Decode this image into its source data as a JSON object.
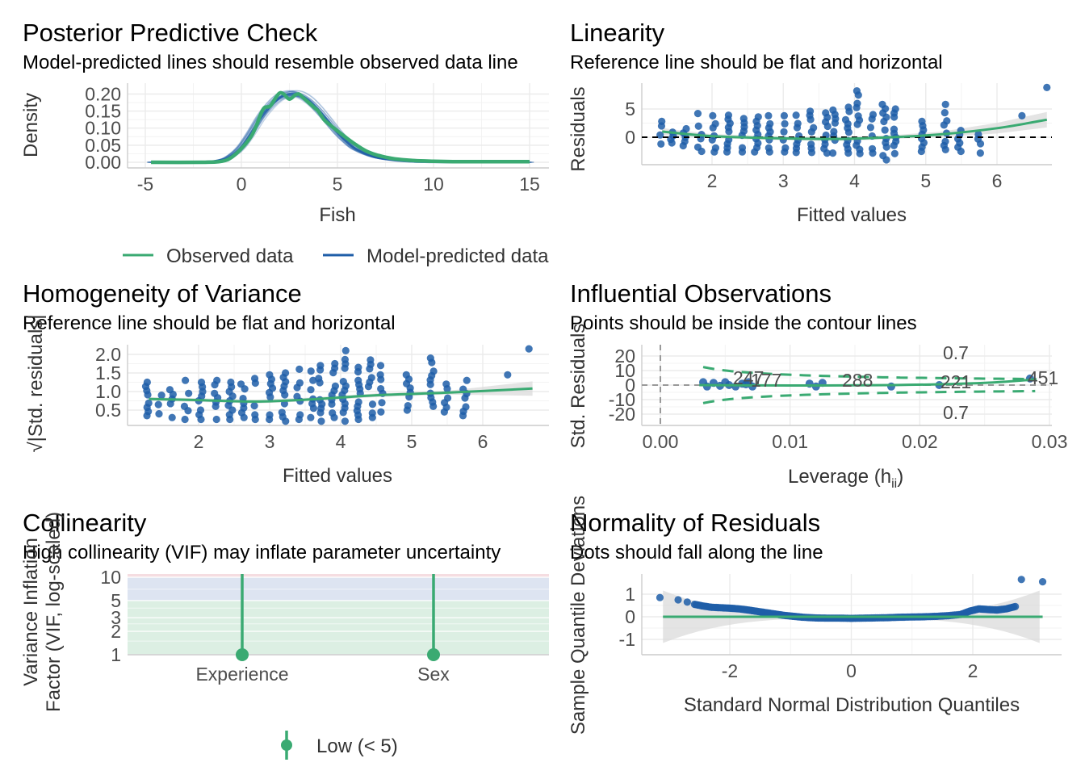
{
  "colors": {
    "observed": "#3aaa72",
    "predicted": "#1f5ea8",
    "points": "#1f5ea8",
    "reference": "#3aaa72",
    "ci_band": "#d9d9d9",
    "zone_low": "#dcefe3",
    "zone_moderate": "#dde4f1",
    "zone_high": "#f5dde1"
  },
  "panels": {
    "ppc": {
      "title": "Posterior Predictive Check",
      "subtitle": "Model-predicted lines should resemble observed data line",
      "xlabel": "Fish",
      "ylabel": "Density",
      "legend_observed": "Observed data",
      "legend_predicted": "Model-predicted data"
    },
    "linearity": {
      "title": "Linearity",
      "subtitle": "Reference line should be flat and horizontal",
      "xlabel": "Fitted values",
      "ylabel": "Residuals"
    },
    "homogeneity": {
      "title": "Homogeneity of Variance",
      "subtitle": "Reference line should be flat and horizontal",
      "xlabel": "Fitted values",
      "ylabel": "√|Std. residuals|"
    },
    "influential": {
      "title": "Influential Observations",
      "subtitle": "Points should be inside the contour lines",
      "xlabel": "Leverage (h",
      "xlabel_sub": "ii",
      "xlabel_end": ")",
      "ylabel": "Std. Residuals",
      "contour_label_top": "0.7",
      "contour_label_bottom": "0.7",
      "point_labels": [
        "247",
        "177",
        "288",
        "221",
        "451"
      ]
    },
    "collinearity": {
      "title": "Collinearity",
      "subtitle": "High collinearity (VIF) may inflate parameter uncertainty",
      "ylabel_line1": "Variance Inflation",
      "ylabel_line2": "Factor (VIF, log-scaled)",
      "legend_low": "Low (< 5)"
    },
    "normality": {
      "title": "Normality of Residuals",
      "subtitle": "Dots should fall along the line",
      "xlabel": "Standard Normal Distribution Quantiles",
      "ylabel": "Sample Quantile Deviations"
    }
  },
  "chart_data": [
    {
      "id": "ppc",
      "type": "line",
      "title": "Posterior Predictive Check",
      "xlabel": "Fish",
      "ylabel": "Density",
      "xlim": [
        -5,
        15
      ],
      "ylim": [
        0,
        0.22
      ],
      "xticks": [
        -5,
        0,
        5,
        10,
        15
      ],
      "yticks": [
        0,
        0.05,
        0.1,
        0.15,
        0.2
      ],
      "series": [
        {
          "name": "Observed data",
          "x": [
            -4.7,
            -2,
            -1,
            -0.5,
            0,
            0.5,
            0.8,
            1,
            1.2,
            1.5,
            1.8,
            2,
            2.2,
            2.5,
            2.8,
            3,
            3.2,
            3.5,
            3.8,
            4,
            4.3,
            4.6,
            5,
            5.5,
            6,
            6.5,
            7,
            7.5,
            8,
            9,
            10,
            11,
            12,
            13,
            15
          ],
          "y": [
            0,
            0,
            0.003,
            0.015,
            0.04,
            0.075,
            0.11,
            0.14,
            0.16,
            0.165,
            0.19,
            0.203,
            0.2,
            0.185,
            0.197,
            0.2,
            0.19,
            0.175,
            0.16,
            0.15,
            0.125,
            0.11,
            0.092,
            0.07,
            0.05,
            0.033,
            0.022,
            0.015,
            0.01,
            0.005,
            0.003,
            0.002,
            0.002,
            0.002,
            0.002
          ]
        },
        {
          "name": "Model-predicted data",
          "x": [
            -4.7,
            -2,
            -1,
            -0.5,
            0,
            0.5,
            1,
            1.5,
            2,
            2.5,
            3,
            3.5,
            4,
            4.5,
            5,
            5.5,
            6,
            7,
            8,
            9,
            10,
            12,
            15
          ],
          "y": [
            0,
            0.001,
            0.007,
            0.02,
            0.045,
            0.085,
            0.13,
            0.165,
            0.19,
            0.2,
            0.198,
            0.182,
            0.155,
            0.122,
            0.088,
            0.06,
            0.038,
            0.015,
            0.006,
            0.002,
            0.001,
            0,
            0
          ]
        }
      ],
      "legend": "bottom"
    },
    {
      "id": "linearity",
      "type": "scatter",
      "title": "Linearity",
      "xlabel": "Fitted values",
      "ylabel": "Residuals",
      "xlim": [
        1.1,
        6.8
      ],
      "ylim": [
        -4.5,
        9
      ],
      "xticks": [
        2,
        3,
        4,
        5,
        6
      ],
      "yticks": [
        0,
        5
      ],
      "reference_line": 0,
      "fitted_values": [
        1.28,
        1.45,
        1.62,
        1.83,
        2.03,
        2.24,
        2.45,
        2.62,
        2.8,
        3.02,
        3.2,
        3.4,
        3.6,
        3.72,
        3.9,
        4.05,
        4.25,
        4.42,
        4.58,
        4.95,
        5.28,
        5.48,
        5.75
      ],
      "residual_max": [
        2.8,
        0.9,
        1.5,
        4.2,
        3.8,
        3.9,
        3.3,
        3.6,
        3.8,
        3.8,
        3.9,
        4.6,
        4.3,
        4.8,
        5.3,
        8.2,
        4,
        5.8,
        5,
        2.8,
        5.8,
        1.2,
        0.5
      ],
      "residual_min": [
        -1.2,
        -1,
        -1.5,
        -2.5,
        -2.6,
        -2.6,
        -2.6,
        -2.6,
        -2.6,
        -2.6,
        -2.7,
        -2.7,
        -2.8,
        -2.8,
        -2.8,
        -2.9,
        -2.8,
        -4,
        -2.9,
        -2.5,
        -2.2,
        -2.5,
        -2.8
      ],
      "outliers": [
        [
          6.35,
          3.8
        ],
        [
          6.7,
          8.8
        ]
      ],
      "smooth": {
        "x": [
          1.3,
          2,
          3,
          3.8,
          4.5,
          5.2,
          6,
          6.7
        ],
        "y": [
          1,
          0.2,
          -0.2,
          -0.3,
          0,
          0.5,
          1.6,
          3.1
        ]
      }
    },
    {
      "id": "homogeneity",
      "type": "scatter",
      "title": "Homogeneity of Variance",
      "xlabel": "Fitted values",
      "ylabel": "√|Std. residuals|",
      "xlim": [
        1.1,
        6.8
      ],
      "ylim": [
        0.1,
        2.3
      ],
      "xticks": [
        2,
        3,
        4,
        5,
        6
      ],
      "yticks": [
        0.5,
        1,
        1.5,
        2
      ],
      "fitted_values": [
        1.28,
        1.45,
        1.62,
        1.83,
        2.03,
        2.24,
        2.45,
        2.62,
        2.8,
        3.02,
        3.2,
        3.4,
        3.6,
        3.72,
        3.9,
        4.05,
        4.25,
        4.42,
        4.58,
        4.95,
        5.28,
        5.48,
        5.75
      ],
      "value_max": [
        1.25,
        0.9,
        1.05,
        1.3,
        1.25,
        1.3,
        1.25,
        1.2,
        1.35,
        1.45,
        1.5,
        1.6,
        1.55,
        1.7,
        1.75,
        2.1,
        1.65,
        1.85,
        1.7,
        1.45,
        1.9,
        1.2,
        1.3
      ],
      "value_min": [
        0.35,
        0.4,
        0.3,
        0.25,
        0.25,
        0.25,
        0.25,
        0.3,
        0.25,
        0.25,
        0.2,
        0.25,
        0.3,
        0.2,
        0.3,
        0.2,
        0.25,
        0.3,
        0.45,
        0.5,
        0.6,
        0.45,
        0.35
      ],
      "outliers": [
        [
          6.35,
          1.45
        ],
        [
          6.65,
          2.15
        ]
      ],
      "smooth": {
        "x": [
          1.3,
          2,
          2.8,
          3.5,
          4.5,
          5.5,
          6.7
        ],
        "y": [
          0.8,
          0.77,
          0.73,
          0.78,
          0.9,
          0.97,
          1.08
        ]
      }
    },
    {
      "id": "influential",
      "type": "scatter",
      "title": "Influential Observations",
      "xlabel": "Leverage (hii)",
      "ylabel": "Std. Residuals",
      "xlim": [
        -0.0015,
        0.0305
      ],
      "ylim": [
        -27,
        27
      ],
      "xticks": [
        0,
        0.01,
        0.02,
        0.03
      ],
      "yticks": [
        -20,
        -10,
        0,
        10,
        20
      ],
      "points": [
        [
          0.0033,
          2
        ],
        [
          0.0036,
          -1
        ],
        [
          0.0041,
          1.5
        ],
        [
          0.0046,
          -0.5
        ],
        [
          0.005,
          2
        ],
        [
          0.0053,
          0
        ],
        [
          0.0058,
          -1
        ],
        [
          0.0063,
          1
        ],
        [
          0.0066,
          0.5
        ],
        [
          0.0068,
          2
        ],
        [
          0.0071,
          -1
        ],
        [
          0.0115,
          1
        ],
        [
          0.012,
          -1
        ],
        [
          0.0125,
          1.5
        ],
        [
          0.0178,
          -1
        ],
        [
          0.0215,
          0
        ],
        [
          0.0285,
          4.5
        ]
      ],
      "labeled_points": [
        [
          0.0045,
          3.5,
          "247"
        ],
        [
          0.0072,
          2.5,
          "177"
        ],
        [
          0.013,
          2.5,
          "288"
        ],
        [
          0.0225,
          0.5,
          "221"
        ],
        [
          0.0285,
          4.5,
          "451"
        ]
      ],
      "contour_level": 0.7,
      "smooth": {
        "x": [
          0.003,
          0.01,
          0.018,
          0.025,
          0.029
        ],
        "y": [
          0,
          -0.3,
          0,
          1.5,
          4
        ]
      }
    },
    {
      "id": "collinearity",
      "type": "bar",
      "title": "Collinearity",
      "ylabel": "Variance Inflation Factor (VIF, log-scaled)",
      "categories": [
        "Experience",
        "Sex"
      ],
      "values": [
        1,
        1
      ],
      "yscale": "log",
      "ylim": [
        1,
        10
      ],
      "yticks": [
        1,
        2,
        3,
        5,
        10
      ],
      "zones": [
        {
          "name": "Low (< 5)",
          "from": 1,
          "to": 5
        },
        {
          "from": 5,
          "to": 10
        },
        {
          "from": 10
        }
      ],
      "legend": "bottom"
    },
    {
      "id": "normality",
      "type": "scatter",
      "title": "Normality of Residuals",
      "xlabel": "Standard Normal Distribution Quantiles",
      "ylabel": "Sample Quantile Deviations",
      "xlim": [
        -3.3,
        3.3
      ],
      "ylim": [
        -1.5,
        1.8
      ],
      "xticks": [
        -2,
        0,
        2
      ],
      "yticks": [
        -1,
        0,
        1
      ],
      "reference_line": 0,
      "points": [
        [
          -3.15,
          0.85
        ],
        [
          -2.85,
          0.75
        ],
        [
          -2.7,
          0.65
        ],
        [
          -2.58,
          0.55
        ],
        [
          -2.45,
          0.48
        ],
        [
          -2.3,
          0.42
        ],
        [
          -2.15,
          0.4
        ],
        [
          -2.0,
          0.38
        ],
        [
          -1.85,
          0.35
        ],
        [
          -1.7,
          0.3
        ],
        [
          -1.55,
          0.24
        ],
        [
          -1.4,
          0.18
        ],
        [
          -1.25,
          0.12
        ],
        [
          -1.1,
          0.06
        ],
        [
          -0.95,
          0.02
        ],
        [
          -0.8,
          -0.02
        ],
        [
          -0.6,
          -0.05
        ],
        [
          -0.4,
          -0.06
        ],
        [
          -0.2,
          -0.06
        ],
        [
          0,
          -0.07
        ],
        [
          0.2,
          -0.06
        ],
        [
          0.4,
          -0.05
        ],
        [
          0.6,
          -0.04
        ],
        [
          0.8,
          -0.02
        ],
        [
          1.0,
          -0.01
        ],
        [
          1.2,
          0.0
        ],
        [
          1.4,
          0.02
        ],
        [
          1.6,
          0.05
        ],
        [
          1.8,
          0.1
        ],
        [
          1.95,
          0.25
        ],
        [
          2.1,
          0.35
        ],
        [
          2.25,
          0.32
        ],
        [
          2.4,
          0.3
        ],
        [
          2.55,
          0.35
        ],
        [
          2.7,
          0.45
        ],
        [
          2.8,
          1.65
        ],
        [
          3.15,
          1.55
        ]
      ]
    }
  ]
}
